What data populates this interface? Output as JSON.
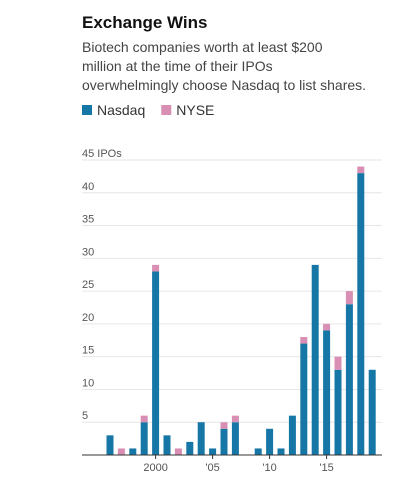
{
  "chart_data": {
    "type": "stacked-bar",
    "title": "Exchange Wins",
    "subtitle": [
      "Biotech companies worth at least $200",
      "million at the time of their IPOs",
      "overwhelmingly choose Nasdaq to list shares."
    ],
    "categories": [
      null,
      null,
      null,
      null,
      "2000",
      null,
      null,
      null,
      null,
      "'05",
      null,
      null,
      null,
      null,
      "'10",
      null,
      null,
      null,
      null,
      "'15",
      null,
      null,
      null,
      null
    ],
    "series": [
      {
        "name": "Nasdaq",
        "color": "#1677a6",
        "values": [
          3,
          0,
          1,
          5,
          28,
          3,
          0,
          2,
          5,
          1,
          4,
          5,
          0,
          1,
          4,
          1,
          6,
          17,
          29,
          19,
          13,
          23,
          43,
          13
        ]
      },
      {
        "name": "NYSE",
        "color": "#d98fb3",
        "values": [
          0,
          1,
          0,
          1,
          1,
          0,
          1,
          0,
          0,
          0,
          1,
          1,
          0,
          0,
          0,
          0,
          0,
          1,
          0,
          1,
          2,
          2,
          1,
          0
        ]
      }
    ],
    "ylim": [
      0,
      45
    ],
    "yticks": [
      5,
      10,
      15,
      20,
      25,
      30,
      35,
      40,
      {
        "value": 45,
        "label": "45 IPOs"
      }
    ],
    "grid": true
  }
}
